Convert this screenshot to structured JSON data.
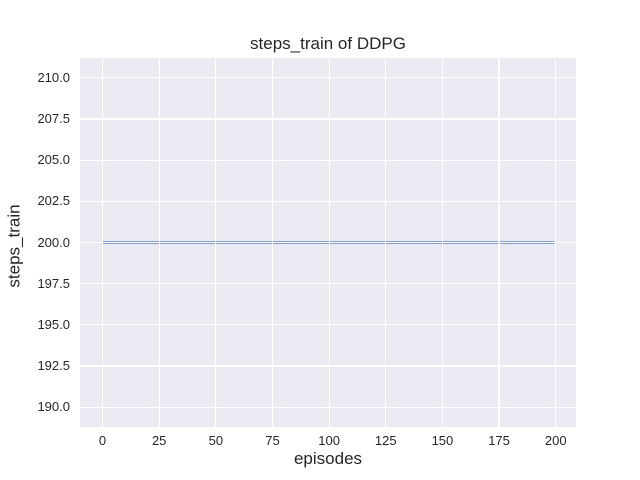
{
  "chart_data": {
    "type": "line",
    "title": "steps_train of DDPG",
    "xlabel": "episodes",
    "ylabel": "steps_train",
    "xlim": [
      -9.95,
      208.95
    ],
    "ylim": [
      188.8,
      211.2
    ],
    "x_ticks": [
      0,
      25,
      50,
      75,
      100,
      125,
      150,
      175,
      200
    ],
    "x_tick_labels": [
      "0",
      "25",
      "50",
      "75",
      "100",
      "125",
      "150",
      "175",
      "200"
    ],
    "y_ticks": [
      190.0,
      192.5,
      195.0,
      197.5,
      200.0,
      202.5,
      205.0,
      207.5,
      210.0
    ],
    "y_tick_labels": [
      "190.0",
      "192.5",
      "195.0",
      "197.5",
      "200.0",
      "202.5",
      "205.0",
      "207.5",
      "210.0"
    ],
    "grid": true,
    "legend_position": "none",
    "plot_background_color": "#eaeaf2",
    "gridline_color": "#ffffff",
    "text_color": "#262626",
    "series": [
      {
        "name": "steps_train",
        "color": "#4c72b0",
        "linewidth": 2.2,
        "x": [
          0,
          199
        ],
        "y": [
          200,
          200
        ]
      }
    ]
  }
}
